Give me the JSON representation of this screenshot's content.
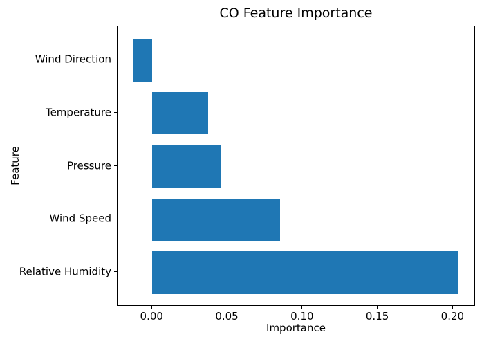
{
  "chart_data": {
    "type": "bar",
    "orientation": "horizontal",
    "title": "CO Feature Importance",
    "xlabel": "Importance",
    "ylabel": "Feature",
    "categories": [
      "Wind Direction",
      "Temperature",
      "Pressure",
      "Wind Speed",
      "Relative Humidity"
    ],
    "values": [
      -0.013,
      0.037,
      0.046,
      0.085,
      0.203
    ],
    "bar_color": "#1f77b4",
    "axis_color": "#000000",
    "background_color": "#ffffff",
    "xlim": [
      -0.0231,
      0.215
    ],
    "x_ticks": {
      "values": [
        0,
        0.05,
        0.1,
        0.15,
        0.2
      ],
      "labels": [
        "0.00",
        "0.05",
        "0.10",
        "0.15",
        "0.20"
      ]
    },
    "grid": false,
    "legend": "none",
    "bar_height_fraction": 0.8
  }
}
